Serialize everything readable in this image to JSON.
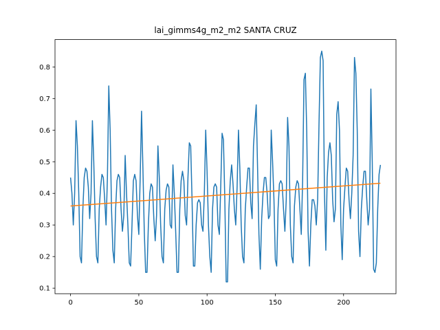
{
  "chart_data": {
    "type": "line",
    "title": "lai_gimms4g_m2_m2 SANTA CRUZ",
    "xlabel": "",
    "ylabel": "",
    "xlim": [
      -11.4,
      238.4
    ],
    "ylim": [
      0.0825,
      0.8865
    ],
    "x_ticks": [
      0,
      50,
      100,
      150,
      200
    ],
    "y_ticks": [
      0.1,
      0.2,
      0.3,
      0.4,
      0.5,
      0.6,
      0.7,
      0.8
    ],
    "y_tick_labels": [
      "0.1",
      "0.2",
      "0.3",
      "0.4",
      "0.5",
      "0.6",
      "0.7",
      "0.8"
    ],
    "grid": false,
    "legend": "none",
    "series": [
      {
        "color": "#1f77b4",
        "x": [
          0,
          1,
          2,
          3,
          4,
          5,
          6,
          7,
          8,
          9,
          10,
          11,
          12,
          13,
          14,
          15,
          16,
          17,
          18,
          19,
          20,
          21,
          22,
          23,
          24,
          25,
          26,
          27,
          28,
          29,
          30,
          31,
          32,
          33,
          34,
          35,
          36,
          37,
          38,
          39,
          40,
          41,
          42,
          43,
          44,
          45,
          46,
          47,
          48,
          49,
          50,
          51,
          52,
          53,
          54,
          55,
          56,
          57,
          58,
          59,
          60,
          61,
          62,
          63,
          64,
          65,
          66,
          67,
          68,
          69,
          70,
          71,
          72,
          73,
          74,
          75,
          76,
          77,
          78,
          79,
          80,
          81,
          82,
          83,
          84,
          85,
          86,
          87,
          88,
          89,
          90,
          91,
          92,
          93,
          94,
          95,
          96,
          97,
          98,
          99,
          100,
          101,
          102,
          103,
          104,
          105,
          106,
          107,
          108,
          109,
          110,
          111,
          112,
          113,
          114,
          115,
          116,
          117,
          118,
          119,
          120,
          121,
          122,
          123,
          124,
          125,
          126,
          127,
          128,
          129,
          130,
          131,
          132,
          133,
          134,
          135,
          136,
          137,
          138,
          139,
          140,
          141,
          142,
          143,
          144,
          145,
          146,
          147,
          148,
          149,
          150,
          151,
          152,
          153,
          154,
          155,
          156,
          157,
          158,
          159,
          160,
          161,
          162,
          163,
          164,
          165,
          166,
          167,
          168,
          169,
          170,
          171,
          172,
          173,
          174,
          175,
          176,
          177,
          178,
          179,
          180,
          181,
          182,
          183,
          184,
          185,
          186,
          187,
          188,
          189,
          190,
          191,
          192,
          193,
          194,
          195,
          196,
          197,
          198,
          199,
          200,
          201,
          202,
          203,
          204,
          205,
          206,
          207,
          208,
          209,
          210,
          211,
          212,
          213,
          214,
          215,
          216,
          217,
          218,
          219,
          220,
          221,
          222,
          223,
          224,
          225,
          226,
          227
        ],
        "values": [
          0.45,
          0.4,
          0.3,
          0.4,
          0.63,
          0.55,
          0.4,
          0.2,
          0.18,
          0.35,
          0.45,
          0.48,
          0.47,
          0.42,
          0.32,
          0.4,
          0.63,
          0.5,
          0.32,
          0.2,
          0.18,
          0.35,
          0.42,
          0.46,
          0.45,
          0.38,
          0.3,
          0.45,
          0.74,
          0.6,
          0.35,
          0.22,
          0.18,
          0.35,
          0.44,
          0.46,
          0.45,
          0.35,
          0.28,
          0.33,
          0.52,
          0.4,
          0.3,
          0.18,
          0.17,
          0.3,
          0.44,
          0.46,
          0.44,
          0.33,
          0.27,
          0.45,
          0.66,
          0.48,
          0.28,
          0.15,
          0.15,
          0.3,
          0.4,
          0.43,
          0.42,
          0.32,
          0.25,
          0.33,
          0.55,
          0.45,
          0.3,
          0.2,
          0.18,
          0.35,
          0.41,
          0.43,
          0.42,
          0.3,
          0.29,
          0.49,
          0.4,
          0.28,
          0.15,
          0.15,
          0.35,
          0.44,
          0.47,
          0.44,
          0.33,
          0.3,
          0.45,
          0.56,
          0.55,
          0.38,
          0.17,
          0.17,
          0.3,
          0.37,
          0.38,
          0.37,
          0.3,
          0.28,
          0.4,
          0.6,
          0.47,
          0.3,
          0.2,
          0.15,
          0.35,
          0.42,
          0.43,
          0.42,
          0.3,
          0.27,
          0.42,
          0.59,
          0.57,
          0.38,
          0.12,
          0.12,
          0.35,
          0.44,
          0.49,
          0.43,
          0.35,
          0.3,
          0.42,
          0.6,
          0.48,
          0.3,
          0.2,
          0.18,
          0.35,
          0.42,
          0.48,
          0.48,
          0.37,
          0.32,
          0.55,
          0.62,
          0.68,
          0.48,
          0.27,
          0.16,
          0.32,
          0.4,
          0.45,
          0.45,
          0.4,
          0.32,
          0.33,
          0.6,
          0.5,
          0.38,
          0.19,
          0.17,
          0.35,
          0.43,
          0.44,
          0.43,
          0.35,
          0.28,
          0.38,
          0.64,
          0.55,
          0.3,
          0.2,
          0.18,
          0.36,
          0.42,
          0.44,
          0.43,
          0.35,
          0.27,
          0.44,
          0.76,
          0.78,
          0.6,
          0.28,
          0.17,
          0.3,
          0.38,
          0.38,
          0.36,
          0.3,
          0.38,
          0.62,
          0.83,
          0.85,
          0.82,
          0.4,
          0.22,
          0.45,
          0.53,
          0.56,
          0.52,
          0.38,
          0.31,
          0.35,
          0.65,
          0.69,
          0.6,
          0.3,
          0.19,
          0.35,
          0.42,
          0.48,
          0.47,
          0.38,
          0.32,
          0.4,
          0.52,
          0.83,
          0.78,
          0.6,
          0.28,
          0.2,
          0.35,
          0.42,
          0.47,
          0.47,
          0.38,
          0.3,
          0.35,
          0.73,
          0.5,
          0.16,
          0.15,
          0.18,
          0.35,
          0.46,
          0.49
        ]
      },
      {
        "color": "#ff7f0e",
        "x": [
          0,
          227
        ],
        "values": [
          0.36,
          0.432
        ]
      }
    ]
  }
}
